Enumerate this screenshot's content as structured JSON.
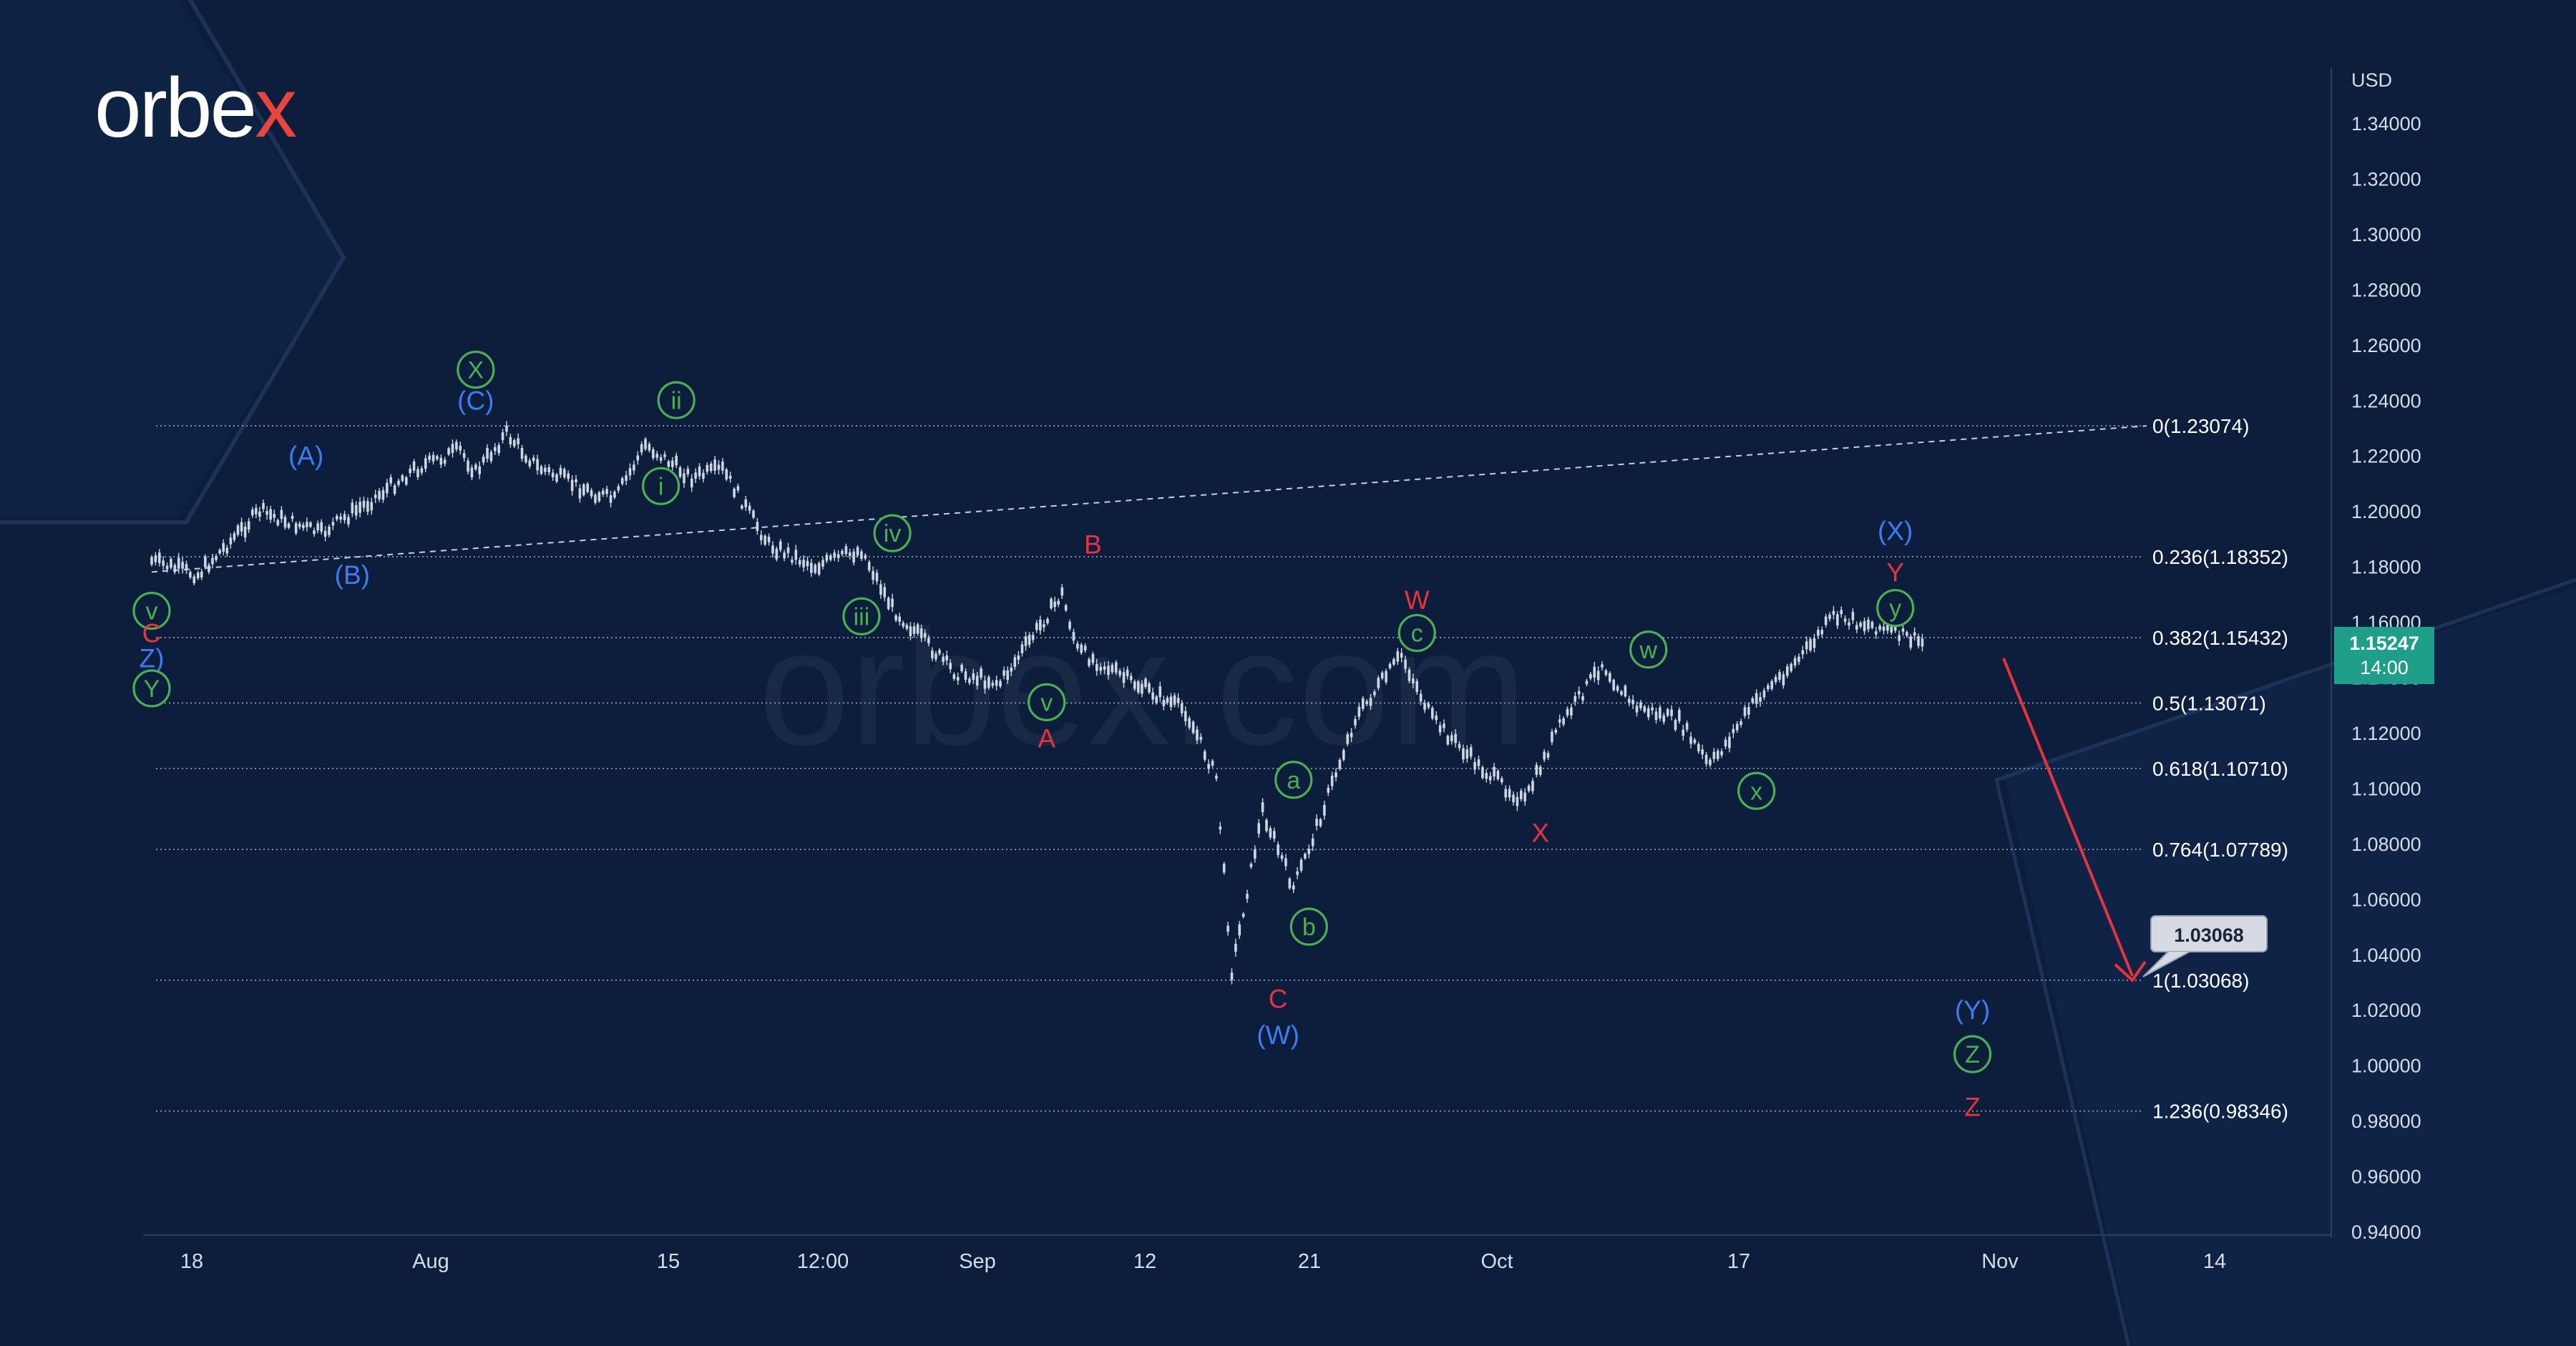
{
  "brand": {
    "logo_text": "orbe",
    "logo_x": "x",
    "watermark": "orbex.com"
  },
  "colors": {
    "background": "#0c1e3c",
    "candle": "#cfd6e2",
    "blue_label": "#3d7cf2",
    "red_label": "#e8333f",
    "green_label": "#4caf50",
    "target_arrow": "#e8333f",
    "price_tag": "#1f9e89"
  },
  "price_axis": {
    "currency": "USD",
    "ticks": [
      "1.34000",
      "1.32000",
      "1.30000",
      "1.28000",
      "1.26000",
      "1.24000",
      "1.22000",
      "1.20000",
      "1.18000",
      "1.16000",
      "1.14000",
      "1.12000",
      "1.10000",
      "1.08000",
      "1.06000",
      "1.04000",
      "1.02000",
      "1.00000",
      "0.98000",
      "0.96000",
      "0.94000"
    ],
    "current_price": "1.15247",
    "countdown": "14:00"
  },
  "time_axis": {
    "ticks": [
      "18",
      "Aug",
      "15",
      "12:00",
      "Sep",
      "12",
      "21",
      "Oct",
      "17",
      "Nov",
      "14"
    ]
  },
  "chart_data": {
    "type": "line",
    "series": [],
    "price_path": [
      {
        "x": "Jul 15",
        "y": 1.182
      },
      {
        "x": "Jul 18",
        "y": 1.177
      },
      {
        "x": "Jul 22",
        "y": 1.2
      },
      {
        "x": "Jul 26",
        "y": 1.192
      },
      {
        "x": "Jul 29",
        "y": 1.203
      },
      {
        "x": "Aug 1",
        "y": 1.215
      },
      {
        "x": "Aug 4",
        "y": 1.222
      },
      {
        "x": "Aug 5",
        "y": 1.214
      },
      {
        "x": "Aug 7",
        "y": 1.228
      },
      {
        "x": "Aug 9",
        "y": 1.216
      },
      {
        "x": "Aug 12",
        "y": 1.208
      },
      {
        "x": "Aug 14",
        "y": 1.204
      },
      {
        "x": "Aug 16",
        "y": 1.224
      },
      {
        "x": "Aug 19",
        "y": 1.212
      },
      {
        "x": "Aug 21",
        "y": 1.215
      },
      {
        "x": "Aug 24",
        "y": 1.188
      },
      {
        "x": "Aug 27",
        "y": 1.18
      },
      {
        "x": "Aug 30",
        "y": 1.186
      },
      {
        "x": "Sep 1",
        "y": 1.165
      },
      {
        "x": "Sep 5",
        "y": 1.142
      },
      {
        "x": "Sep 8",
        "y": 1.138
      },
      {
        "x": "Sep 12",
        "y": 1.17
      },
      {
        "x": "Sep 13",
        "y": 1.15
      },
      {
        "x": "Sep 16",
        "y": 1.14
      },
      {
        "x": "Sep 20",
        "y": 1.128
      },
      {
        "x": "Sep 22",
        "y": 1.104
      },
      {
        "x": "Sep 23",
        "y": 1.034
      },
      {
        "x": "Sep 25",
        "y": 1.092
      },
      {
        "x": "Sep 27",
        "y": 1.064
      },
      {
        "x": "Sep 28",
        "y": 1.078
      },
      {
        "x": "Oct 1",
        "y": 1.125
      },
      {
        "x": "Oct 4",
        "y": 1.148
      },
      {
        "x": "Oct 6",
        "y": 1.125
      },
      {
        "x": "Oct 9",
        "y": 1.108
      },
      {
        "x": "Oct 12",
        "y": 1.095
      },
      {
        "x": "Oct 14",
        "y": 1.12
      },
      {
        "x": "Oct 17",
        "y": 1.145
      },
      {
        "x": "Oct 19",
        "y": 1.13
      },
      {
        "x": "Oct 22",
        "y": 1.124
      },
      {
        "x": "Oct 24",
        "y": 1.108
      },
      {
        "x": "Oct 27",
        "y": 1.132
      },
      {
        "x": "Oct 30",
        "y": 1.148
      },
      {
        "x": "Nov 1",
        "y": 1.162
      },
      {
        "x": "Nov 4",
        "y": 1.158
      },
      {
        "x": "Nov 7",
        "y": 1.152
      }
    ],
    "projection": {
      "from": {
        "x": "Nov 7",
        "y": 1.152
      },
      "to": {
        "x": "Nov 10",
        "y": 1.03068
      },
      "label": "1.03068"
    },
    "fib_levels": [
      {
        "ratio": "0",
        "value": 1.23074,
        "label": "0(1.23074)"
      },
      {
        "ratio": "0.236",
        "value": 1.18352,
        "label": "0.236(1.18352)"
      },
      {
        "ratio": "0.382",
        "value": 1.15432,
        "label": "0.382(1.15432)"
      },
      {
        "ratio": "0.5",
        "value": 1.13071,
        "label": "0.5(1.13071)"
      },
      {
        "ratio": "0.618",
        "value": 1.1071,
        "label": "0.618(1.10710)"
      },
      {
        "ratio": "0.764",
        "value": 1.07789,
        "label": "0.764(1.07789)"
      },
      {
        "ratio": "1",
        "value": 1.03068,
        "label": "1(1.03068)"
      },
      {
        "ratio": "1.236",
        "value": 0.98346,
        "label": "1.236(0.98346)"
      }
    ],
    "trendline": {
      "from": {
        "x": "Jul 15",
        "y": 1.178
      },
      "to": {
        "x": "Nov 10",
        "y": 1.23074
      }
    },
    "wave_labels": [
      {
        "text": "(A)",
        "color": "blue",
        "circled": false,
        "x": "Jul 25",
        "y": 1.22
      },
      {
        "text": "(B)",
        "color": "blue",
        "circled": false,
        "x": "Jul 28",
        "y": 1.177
      },
      {
        "text": "(C)",
        "color": "blue",
        "circled": false,
        "x": "Aug 5",
        "y": 1.24
      },
      {
        "text": "X",
        "color": "green",
        "circled": true,
        "x": "Aug 5",
        "y": 1.251
      },
      {
        "text": "ii",
        "color": "green",
        "circled": true,
        "x": "Aug 18",
        "y": 1.24
      },
      {
        "text": "i",
        "color": "green",
        "circled": true,
        "x": "Aug 17",
        "y": 1.209
      },
      {
        "text": "iii",
        "color": "green",
        "circled": true,
        "x": "Aug 30",
        "y": 1.162
      },
      {
        "text": "iv",
        "color": "green",
        "circled": true,
        "x": "Sep 1",
        "y": 1.192
      },
      {
        "text": "v",
        "color": "green",
        "circled": true,
        "x": "Sep 11",
        "y": 1.131
      },
      {
        "text": "A",
        "color": "red",
        "circled": false,
        "x": "Sep 11",
        "y": 1.118
      },
      {
        "text": "B",
        "color": "red",
        "circled": false,
        "x": "Sep 14",
        "y": 1.188
      },
      {
        "text": "a",
        "color": "green",
        "circled": true,
        "x": "Sep 27",
        "y": 1.103
      },
      {
        "text": "b",
        "color": "green",
        "circled": true,
        "x": "Sep 28",
        "y": 1.05
      },
      {
        "text": "C",
        "color": "red",
        "circled": false,
        "x": "Sep 26",
        "y": 1.024
      },
      {
        "text": "(W)",
        "color": "blue",
        "circled": false,
        "x": "Sep 26",
        "y": 1.011
      },
      {
        "text": "W",
        "color": "red",
        "circled": false,
        "x": "Oct 5",
        "y": 1.168
      },
      {
        "text": "c",
        "color": "green",
        "circled": true,
        "x": "Oct 5",
        "y": 1.156
      },
      {
        "text": "X",
        "color": "red",
        "circled": false,
        "x": "Oct 13",
        "y": 1.084
      },
      {
        "text": "w",
        "color": "green",
        "circled": true,
        "x": "Oct 20",
        "y": 1.15
      },
      {
        "text": "x",
        "color": "green",
        "circled": true,
        "x": "Oct 27",
        "y": 1.099
      },
      {
        "text": "(X)",
        "color": "blue",
        "circled": false,
        "x": "Nov 5",
        "y": 1.193
      },
      {
        "text": "Y",
        "color": "red",
        "circled": false,
        "x": "Nov 5",
        "y": 1.178
      },
      {
        "text": "y",
        "color": "green",
        "circled": true,
        "x": "Nov 5",
        "y": 1.165
      },
      {
        "text": "(Y)",
        "color": "blue",
        "circled": false,
        "x": "Nov 10",
        "y": 1.02
      },
      {
        "text": "Z",
        "color": "green",
        "circled": true,
        "x": "Nov 10",
        "y": 1.004
      },
      {
        "text": "Z",
        "color": "red",
        "circled": false,
        "x": "Nov 10",
        "y": 0.985
      },
      {
        "text": "v",
        "color": "green",
        "circled": true,
        "x": "Jul 15",
        "y": 1.164
      },
      {
        "text": "C",
        "color": "red",
        "circled": false,
        "x": "Jul 15",
        "y": 1.156
      },
      {
        "text": "Z)",
        "color": "blue",
        "circled": false,
        "x": "Jul 15",
        "y": 1.147
      },
      {
        "text": "Y",
        "color": "green",
        "circled": true,
        "x": "Jul 15",
        "y": 1.136
      }
    ]
  }
}
